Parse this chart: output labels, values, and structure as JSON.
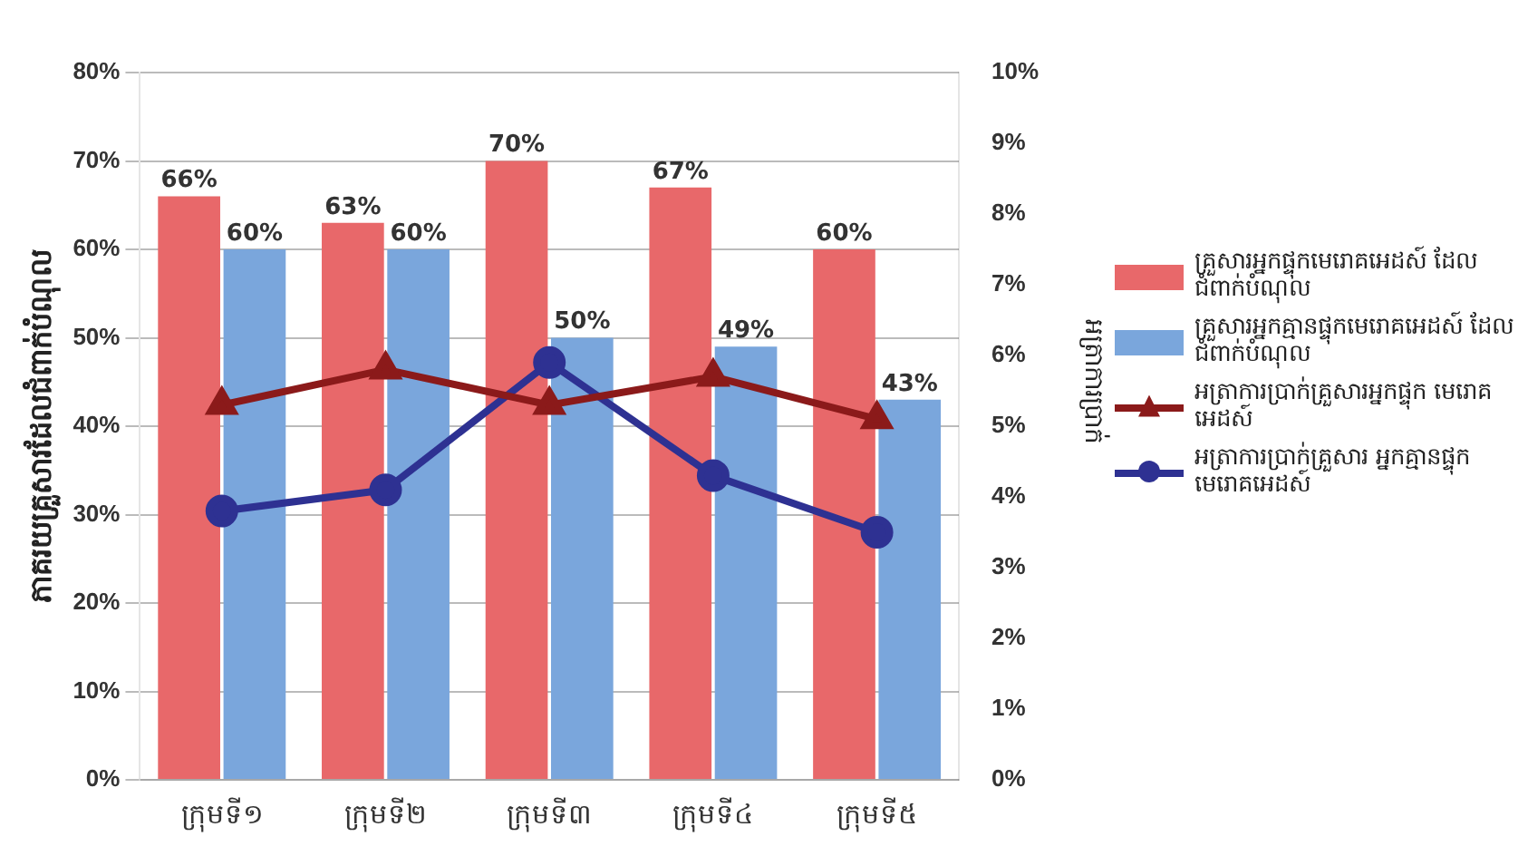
{
  "chart_data": {
    "type": "bar",
    "ylabel": "ភាគរយគ្រួសារដែលជំពាក់បំណុល",
    "y2label": "អត្រាការប្រាក់",
    "categories": [
      "ក្រុមទី១",
      "ក្រុមទី២",
      "ក្រុមទី៣",
      "ក្រុមទី៤",
      "ក្រុមទី៥"
    ],
    "series": [
      {
        "name": "គ្រួសារអ្នកផ្ទុកមេរោគអេដស៍ ដែលជំពាក់បំណុល",
        "color": "#e8686a",
        "values": [
          66,
          63,
          70,
          67,
          60
        ],
        "value_labels": [
          "66%",
          "63%",
          "70%",
          "67%",
          "60%"
        ]
      },
      {
        "name": "គ្រួសារអ្នកគ្មានផ្ទុកមេរោគអេដស៍ ដែលជំពាក់បំណុល",
        "color": "#7aa6dc",
        "values": [
          60,
          60,
          50,
          49,
          43
        ],
        "value_labels": [
          "60%",
          "60%",
          "50%",
          "49%",
          "43%"
        ]
      },
      {
        "name": "អត្រាការប្រាក់គ្រួសារអ្នកផ្ទុក មេរោគអេដស៍",
        "type": "line",
        "axis": "y2",
        "marker": "triangle",
        "color": "#8b1a1a",
        "values": [
          5.3,
          5.8,
          5.3,
          5.7,
          5.1
        ]
      },
      {
        "name": "អត្រាការប្រាក់គ្រួសារ អ្នកគ្មានផ្ទុកមេរោគអេដស៍",
        "type": "line",
        "axis": "y2",
        "marker": "circle",
        "color": "#2e3192",
        "values": [
          3.8,
          4.1,
          5.9,
          4.3,
          3.5
        ]
      }
    ],
    "ylim": [
      0,
      80
    ],
    "yticks": [
      {
        "value": 0,
        "label": "0%"
      },
      {
        "value": 10,
        "label": "10%"
      },
      {
        "value": 20,
        "label": "20%"
      },
      {
        "value": 30,
        "label": "30%"
      },
      {
        "value": 40,
        "label": "40%"
      },
      {
        "value": 50,
        "label": "50%"
      },
      {
        "value": 60,
        "label": "60%"
      },
      {
        "value": 70,
        "label": "70%"
      },
      {
        "value": 80,
        "label": "80%"
      }
    ],
    "y2lim": [
      0,
      10
    ],
    "y2ticks": [
      {
        "value": 0,
        "label": "0%"
      },
      {
        "value": 1,
        "label": "1%"
      },
      {
        "value": 2,
        "label": "2%"
      },
      {
        "value": 3,
        "label": "3%"
      },
      {
        "value": 4,
        "label": "4%"
      },
      {
        "value": 5,
        "label": "5%"
      },
      {
        "value": 6,
        "label": "6%"
      },
      {
        "value": 7,
        "label": "7%"
      },
      {
        "value": 8,
        "label": "8%"
      },
      {
        "value": 9,
        "label": "9%"
      },
      {
        "value": 10,
        "label": "10%"
      }
    ],
    "grid": "y",
    "legend": "right"
  }
}
